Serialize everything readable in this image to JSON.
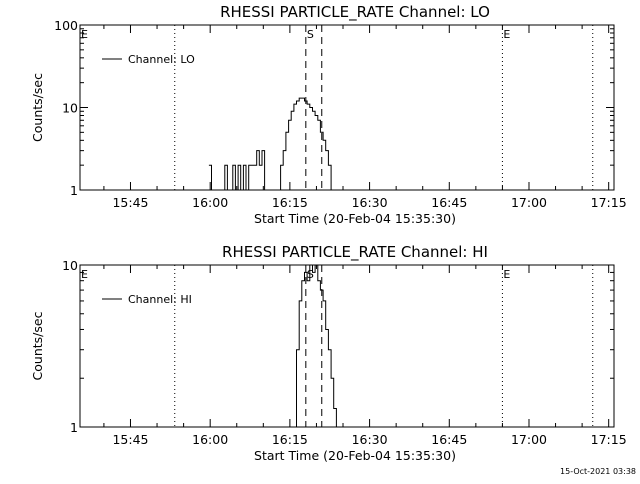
{
  "chart_data": [
    {
      "type": "line",
      "title": "RHESSI PARTICLE_RATE Channel: LO",
      "xlabel": "Start Time (20-Feb-04 15:35:30)",
      "ylabel": "Counts/sec",
      "y_scale": "log",
      "ylim": [
        1,
        100
      ],
      "y_ticks": [
        "1",
        "10",
        "100"
      ],
      "x_ticks": [
        "15:45",
        "16:00",
        "16:15",
        "16:30",
        "16:45",
        "17:00",
        "17:15"
      ],
      "xlim": [
        "15:35:30",
        "17:16:00"
      ],
      "series": [
        {
          "name": "Channel: LO",
          "x": [
            "16:00:00",
            "16:00:30",
            "16:01:00",
            "16:01:30",
            "16:02:00",
            "16:02:30",
            "16:03:00",
            "16:03:30",
            "16:04:00",
            "16:04:30",
            "16:05:00",
            "16:05:30",
            "16:06:00",
            "16:06:30",
            "16:07:00",
            "16:07:30",
            "16:08:00",
            "16:08:30",
            "16:09:00",
            "16:09:30",
            "16:10:00",
            "16:10:30",
            "16:11:00",
            "16:11:30",
            "16:12:00",
            "16:12:30",
            "16:13:00",
            "16:13:30",
            "16:14:00",
            "16:14:30",
            "16:15:00",
            "16:15:30",
            "16:16:00",
            "16:16:30",
            "16:17:00",
            "16:17:30",
            "16:18:00",
            "16:18:30",
            "16:19:00",
            "16:19:30",
            "16:20:00",
            "16:20:30",
            "16:21:00",
            "16:21:30",
            "16:22:00",
            "16:22:30",
            "16:23:00",
            "16:23:30",
            "16:24:00",
            "16:24:30",
            "16:25:00",
            "16:25:30",
            "16:26:00"
          ],
          "values": [
            2,
            1,
            1,
            1,
            1,
            1,
            2,
            1,
            1,
            2,
            1,
            2,
            1,
            2,
            1,
            2,
            2,
            2,
            3,
            2,
            3,
            1,
            1,
            1,
            1,
            1,
            1,
            2,
            3,
            5,
            7,
            9,
            11,
            12,
            13,
            13,
            12,
            11,
            10,
            9,
            8,
            7,
            5,
            4,
            3,
            2,
            1,
            1,
            1,
            1,
            1,
            1,
            1
          ]
        }
      ],
      "annotations": [
        {
          "text": "E",
          "x": "15:35:30"
        },
        {
          "text": "S",
          "x": "16:18:00"
        },
        {
          "text": "E",
          "x": "16:55:00"
        }
      ],
      "vlines": [
        {
          "x": "15:53:20",
          "style": "dotted"
        },
        {
          "x": "16:18:00",
          "style": "dashed"
        },
        {
          "x": "16:21:00",
          "style": "dashed"
        },
        {
          "x": "16:55:00",
          "style": "dotted"
        },
        {
          "x": "17:12:00",
          "style": "dotted"
        }
      ],
      "legend": "top-left",
      "grid": false
    },
    {
      "type": "line",
      "title": "RHESSI PARTICLE_RATE Channel: HI",
      "xlabel": "Start Time (20-Feb-04 15:35:30)",
      "ylabel": "Counts/sec",
      "y_scale": "log",
      "ylim": [
        1,
        10
      ],
      "y_ticks": [
        "1",
        "10"
      ],
      "x_ticks": [
        "15:45",
        "16:00",
        "16:15",
        "16:30",
        "16:45",
        "17:00",
        "17:15"
      ],
      "xlim": [
        "15:35:30",
        "17:16:00"
      ],
      "series": [
        {
          "name": "Channel: HI",
          "x": [
            "16:16:00",
            "16:16:30",
            "16:17:00",
            "16:17:30",
            "16:18:00",
            "16:18:30",
            "16:19:00",
            "16:19:30",
            "16:20:00",
            "16:20:30",
            "16:21:00",
            "16:21:30",
            "16:22:00",
            "16:22:30",
            "16:23:00",
            "16:23:30",
            "16:24:00"
          ],
          "values": [
            1,
            3,
            6,
            8,
            9,
            8,
            10,
            9,
            10,
            8,
            7,
            6,
            4,
            3,
            2,
            1.3,
            1
          ]
        }
      ],
      "annotations": [
        {
          "text": "E",
          "x": "15:35:30"
        },
        {
          "text": "S",
          "x": "16:18:00"
        },
        {
          "text": "E",
          "x": "16:55:00"
        }
      ],
      "vlines": [
        {
          "x": "15:53:20",
          "style": "dotted"
        },
        {
          "x": "16:18:00",
          "style": "dashed"
        },
        {
          "x": "16:21:00",
          "style": "dashed"
        },
        {
          "x": "16:55:00",
          "style": "dotted"
        },
        {
          "x": "17:12:00",
          "style": "dotted"
        }
      ],
      "legend": "top-left",
      "grid": false
    }
  ],
  "footer": {
    "timestamp": "15-Oct-2021 03:38"
  }
}
